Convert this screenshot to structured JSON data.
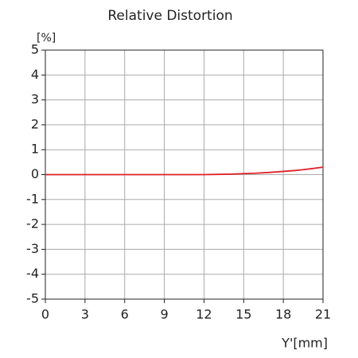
{
  "chart_data": {
    "type": "line",
    "title": "Relative Distortion",
    "x_label": "Y'[mm]",
    "y_label": "[%]",
    "x": [
      0,
      3,
      6,
      9,
      12,
      13,
      14,
      15,
      16,
      17,
      18,
      19,
      20,
      21
    ],
    "series": [
      {
        "color": "#e0202a",
        "values": [
          0,
          0,
          0,
          0,
          0,
          0.01,
          0.02,
          0.04,
          0.06,
          0.09,
          0.13,
          0.17,
          0.23,
          0.3
        ]
      }
    ],
    "xlim": [
      0,
      21
    ],
    "xticks": [
      0,
      3,
      6,
      9,
      12,
      15,
      18,
      21
    ],
    "ylim": [
      -5,
      5
    ],
    "yticks": [
      -5,
      -4,
      -3,
      -2,
      -1,
      0,
      1,
      2,
      3,
      4,
      5
    ],
    "grid": true
  }
}
